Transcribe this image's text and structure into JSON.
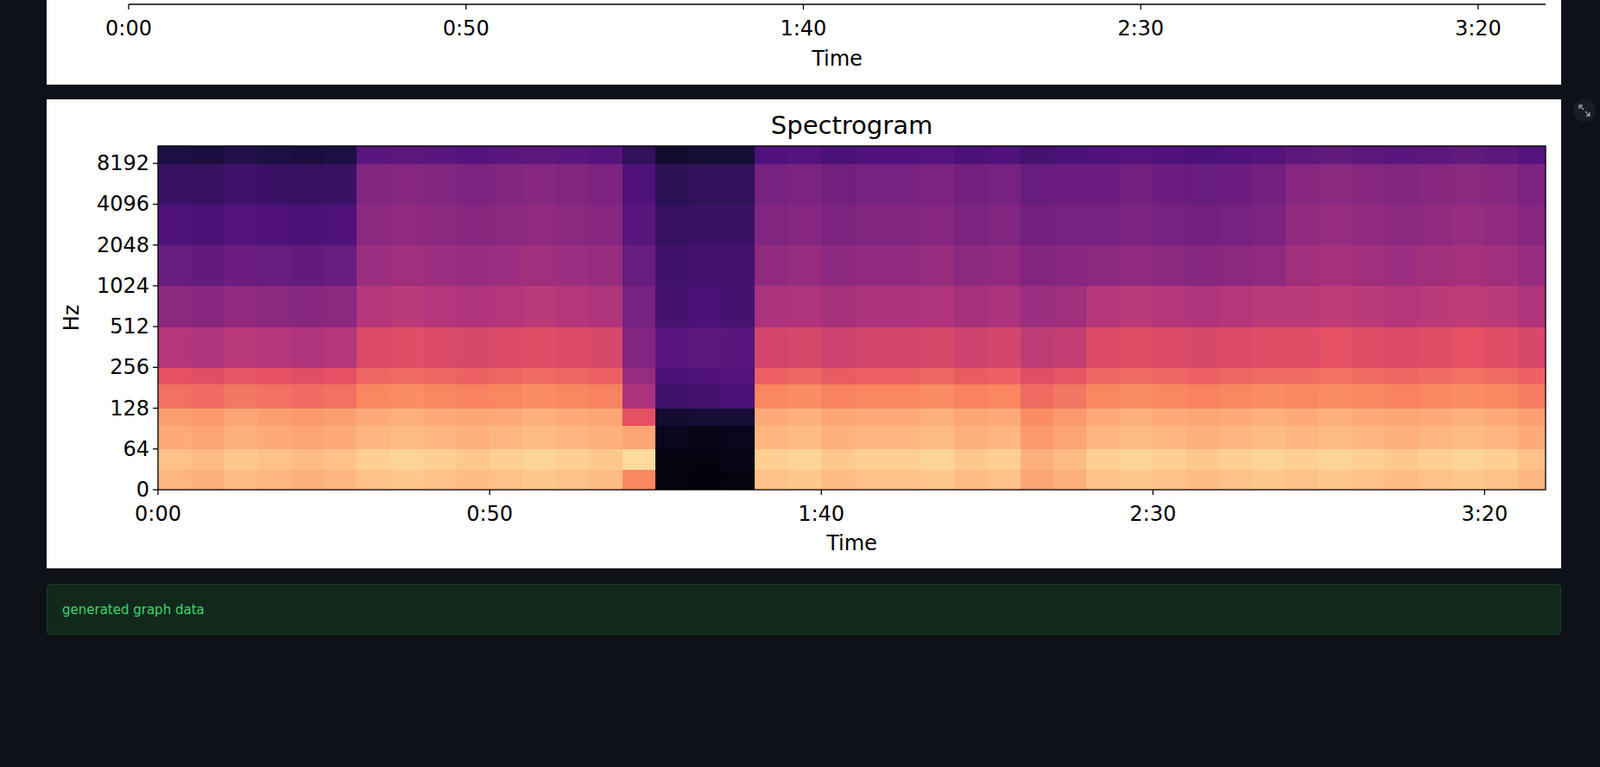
{
  "chart_data": [
    {
      "type": "waveplot",
      "xlabel": "Time",
      "xlim": [
        0,
        210
      ],
      "xticks": [
        {
          "value": 0,
          "label": "0:00"
        },
        {
          "value": 50,
          "label": "0:50"
        },
        {
          "value": 100,
          "label": "1:40"
        },
        {
          "value": 150,
          "label": "2:30"
        },
        {
          "value": 200,
          "label": "3:20"
        }
      ]
    },
    {
      "type": "spectrogram",
      "title": "Spectrogram",
      "xlabel": "Time",
      "ylabel": "Hz",
      "log": "y",
      "grid": false,
      "xlim": [
        0,
        209.2
      ],
      "ylim": [
        0,
        11025
      ],
      "xticks": [
        {
          "value": 0,
          "label": "0:00"
        },
        {
          "value": 50,
          "label": "0:50"
        },
        {
          "value": 100,
          "label": "1:40"
        },
        {
          "value": 150,
          "label": "2:30"
        },
        {
          "value": 200,
          "label": "3:20"
        }
      ],
      "yticks": [
        0,
        64,
        128,
        256,
        512,
        1024,
        2048,
        4096,
        8192
      ],
      "zlim": [
        -80,
        0
      ],
      "x_bins": [
        0,
        5,
        10,
        15,
        20,
        25,
        30,
        35,
        40,
        45,
        50,
        55,
        60,
        65,
        70,
        75,
        80,
        85,
        90,
        95,
        100,
        105,
        110,
        115,
        120,
        125,
        130,
        135,
        140,
        145,
        150,
        155,
        160,
        165,
        170,
        175,
        180,
        185,
        190,
        195,
        200,
        205,
        209.2
      ],
      "y_bins": [
        0,
        32,
        64,
        96,
        128,
        192,
        256,
        512,
        1024,
        2048,
        4096,
        8192,
        11025
      ],
      "values": [
        [
          -12,
          -13,
          -11,
          -12,
          -13,
          -12,
          -10,
          -9,
          -10,
          -11,
          -10,
          -9,
          -10,
          -11,
          -20,
          -78,
          -79,
          -78,
          -10,
          -9,
          -11,
          -10,
          -10,
          -9,
          -11,
          -10,
          -15,
          -13,
          -10,
          -9,
          -10,
          -11,
          -10,
          -9,
          -10,
          -9,
          -10,
          -11,
          -10,
          -9,
          -10,
          -12
        ],
        [
          -10,
          -11,
          -9,
          -10,
          -11,
          -10,
          -8,
          -7,
          -8,
          -9,
          -8,
          -7,
          -8,
          -9,
          -6,
          -78,
          -78,
          -77,
          -8,
          -7,
          -9,
          -8,
          -8,
          -7,
          -9,
          -8,
          -13,
          -11,
          -8,
          -7,
          -8,
          -9,
          -8,
          -7,
          -8,
          -7,
          -8,
          -9,
          -8,
          -7,
          -8,
          -10
        ],
        [
          -14,
          -15,
          -13,
          -14,
          -15,
          -14,
          -12,
          -11,
          -12,
          -13,
          -12,
          -11,
          -12,
          -13,
          -15,
          -76,
          -77,
          -76,
          -12,
          -11,
          -13,
          -12,
          -12,
          -11,
          -13,
          -12,
          -17,
          -15,
          -12,
          -11,
          -12,
          -13,
          -12,
          -11,
          -12,
          -11,
          -12,
          -13,
          -12,
          -11,
          -12,
          -14
        ],
        [
          -16,
          -17,
          -15,
          -16,
          -17,
          -16,
          -14,
          -13,
          -14,
          -15,
          -14,
          -13,
          -14,
          -15,
          -30,
          -73,
          -72,
          -72,
          -14,
          -13,
          -15,
          -14,
          -14,
          -13,
          -15,
          -14,
          -19,
          -17,
          -14,
          -13,
          -14,
          -15,
          -14,
          -13,
          -14,
          -13,
          -14,
          -15,
          -14,
          -13,
          -14,
          -16
        ],
        [
          -24,
          -25,
          -23,
          -24,
          -25,
          -24,
          -20,
          -19,
          -20,
          -21,
          -20,
          -19,
          -20,
          -21,
          -42,
          -63,
          -62,
          -61,
          -20,
          -19,
          -21,
          -20,
          -20,
          -19,
          -21,
          -20,
          -25,
          -23,
          -20,
          -19,
          -20,
          -21,
          -20,
          -19,
          -20,
          -19,
          -20,
          -21,
          -20,
          -19,
          -20,
          -22
        ],
        [
          -30,
          -31,
          -29,
          -30,
          -31,
          -30,
          -26,
          -25,
          -26,
          -27,
          -26,
          -25,
          -26,
          -27,
          -46,
          -61,
          -60,
          -59,
          -27,
          -26,
          -28,
          -27,
          -27,
          -26,
          -28,
          -27,
          -31,
          -29,
          -26,
          -25,
          -26,
          -27,
          -26,
          -25,
          -25,
          -24,
          -25,
          -26,
          -25,
          -24,
          -25,
          -27
        ],
        [
          -40,
          -41,
          -39,
          -40,
          -41,
          -40,
          -32,
          -31,
          -32,
          -33,
          -32,
          -31,
          -32,
          -33,
          -50,
          -58,
          -57,
          -58,
          -34,
          -33,
          -35,
          -34,
          -34,
          -33,
          -35,
          -34,
          -38,
          -37,
          -32,
          -31,
          -32,
          -33,
          -32,
          -31,
          -31,
          -30,
          -31,
          -32,
          -31,
          -30,
          -31,
          -33
        ],
        [
          -48,
          -49,
          -47,
          -48,
          -49,
          -48,
          -40,
          -39,
          -40,
          -41,
          -40,
          -39,
          -40,
          -41,
          -52,
          -62,
          -61,
          -62,
          -42,
          -41,
          -43,
          -42,
          -42,
          -41,
          -43,
          -42,
          -45,
          -44,
          -40,
          -39,
          -40,
          -41,
          -40,
          -39,
          -39,
          -38,
          -39,
          -40,
          -39,
          -38,
          -39,
          -41
        ],
        [
          -55,
          -56,
          -54,
          -55,
          -56,
          -55,
          -45,
          -44,
          -45,
          -46,
          -45,
          -44,
          -45,
          -46,
          -55,
          -63,
          -62,
          -62,
          -47,
          -46,
          -48,
          -47,
          -47,
          -46,
          -48,
          -47,
          -50,
          -49,
          -48,
          -47,
          -48,
          -49,
          -48,
          -47,
          -44,
          -43,
          -44,
          -45,
          -44,
          -43,
          -44,
          -46
        ],
        [
          -60,
          -61,
          -59,
          -60,
          -61,
          -60,
          -48,
          -47,
          -48,
          -49,
          -48,
          -47,
          -48,
          -49,
          -58,
          -65,
          -64,
          -64,
          -50,
          -49,
          -51,
          -50,
          -50,
          -49,
          -51,
          -50,
          -53,
          -52,
          -52,
          -51,
          -52,
          -53,
          -52,
          -51,
          -47,
          -46,
          -47,
          -48,
          -47,
          -46,
          -47,
          -49
        ],
        [
          -64,
          -65,
          -63,
          -64,
          -65,
          -64,
          -50,
          -49,
          -50,
          -51,
          -50,
          -49,
          -50,
          -51,
          -60,
          -67,
          -66,
          -66,
          -52,
          -51,
          -53,
          -52,
          -52,
          -51,
          -53,
          -52,
          -55,
          -54,
          -54,
          -53,
          -54,
          -55,
          -54,
          -53,
          -49,
          -48,
          -49,
          -50,
          -49,
          -48,
          -49,
          -51
        ],
        [
          -70,
          -71,
          -69,
          -70,
          -71,
          -70,
          -58,
          -57,
          -58,
          -59,
          -58,
          -57,
          -58,
          -59,
          -66,
          -73,
          -72,
          -72,
          -60,
          -59,
          -61,
          -60,
          -60,
          -59,
          -61,
          -60,
          -62,
          -61,
          -60,
          -59,
          -60,
          -61,
          -60,
          -59,
          -57,
          -56,
          -57,
          -58,
          -57,
          -56,
          -57,
          -59
        ]
      ]
    }
  ],
  "alert": {
    "text": "generated graph data"
  }
}
